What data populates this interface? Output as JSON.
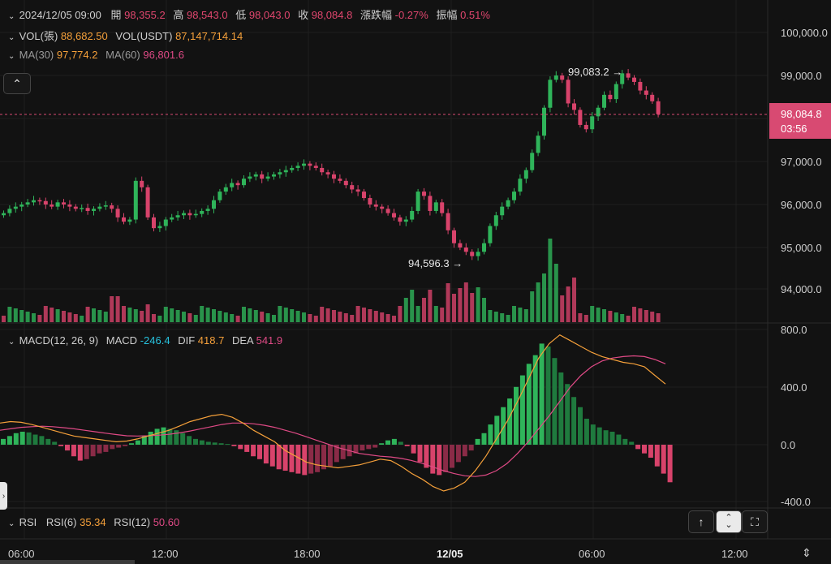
{
  "header": {
    "datetime": "2024/12/05 09:00",
    "open_label": "開",
    "open": "98,355.2",
    "high_label": "高",
    "high": "98,543.0",
    "low_label": "低",
    "low": "98,043.0",
    "close_label": "收",
    "close": "98,084.8",
    "change_label": "漲跌幅",
    "change": "-0.27%",
    "amplitude_label": "振幅",
    "amplitude": "0.51%"
  },
  "vol": {
    "label1": "VOL(張)",
    "value1": "88,682.50",
    "label2": "VOL(USDT)",
    "value2": "87,147,714.14"
  },
  "ma": {
    "label30": "MA(30)",
    "value30": "97,774.2",
    "label60": "MA(60)",
    "value60": "96,801.6"
  },
  "annotations": {
    "high": "99,083.2",
    "low": "94,596.3"
  },
  "price_tag": {
    "price": "98,084.8",
    "countdown": "03:56"
  },
  "price_axis": [
    "100,000.0",
    "99,000.0",
    "98,000.0",
    "97,000.0",
    "96,000.0",
    "95,000.0",
    "94,000.0"
  ],
  "macd": {
    "label": "MACD(12, 26, 9)",
    "macd_label": "MACD",
    "macd_value": "-246.4",
    "dif_label": "DIF",
    "dif_value": "418.7",
    "dea_label": "DEA",
    "dea_value": "541.9"
  },
  "macd_axis": [
    "800.0",
    "400.0",
    "0.0",
    "-400.0"
  ],
  "rsi": {
    "label": "RSI",
    "rsi6_label": "RSI(6)",
    "rsi6_value": "35.34",
    "rsi12_label": "RSI(12)",
    "rsi12_value": "50.60"
  },
  "time_axis": [
    "06:00",
    "12:00",
    "18:00",
    "12/05",
    "06:00",
    "12:00"
  ],
  "colors": {
    "up": "#2fb45a",
    "down": "#d8436b",
    "bg": "#121212",
    "dif": "#f5a03a",
    "dea": "#e04a86"
  },
  "icons": {
    "collapse": "chevron-up-icon",
    "expand_side": "chevron-right-icon",
    "arrow_up": "arrow-up-icon",
    "toggle": "chevron-updown-icon",
    "fullscreen": "fullscreen-icon",
    "axis_settings": "vertical-fit-icon"
  }
}
